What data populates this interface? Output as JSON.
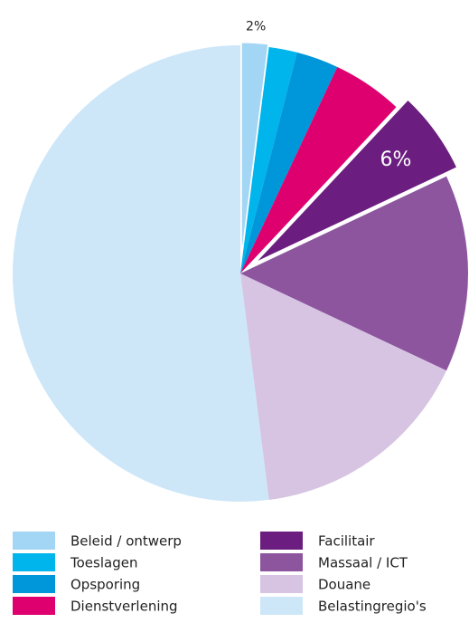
{
  "chart_data": {
    "type": "pie",
    "categories": [
      "Beleid / ontwerp",
      "Toeslagen",
      "Opsporing",
      "Dienstverlening",
      "Facilitair",
      "Massaal / ICT",
      "Douane",
      "Belastingregio's"
    ],
    "values": [
      2,
      2,
      3,
      5,
      6,
      14,
      16,
      52
    ],
    "value_labels": [
      "2%",
      null,
      null,
      null,
      "6%",
      null,
      null,
      null
    ],
    "colors": [
      "#a3d6f4",
      "#00b5ec",
      "#0096da",
      "#df0070",
      "#6b1e7f",
      "#8c559e",
      "#d6c4e2",
      "#cde7f9"
    ],
    "exploded": [
      true,
      false,
      false,
      false,
      true,
      false,
      false,
      false
    ]
  }
}
